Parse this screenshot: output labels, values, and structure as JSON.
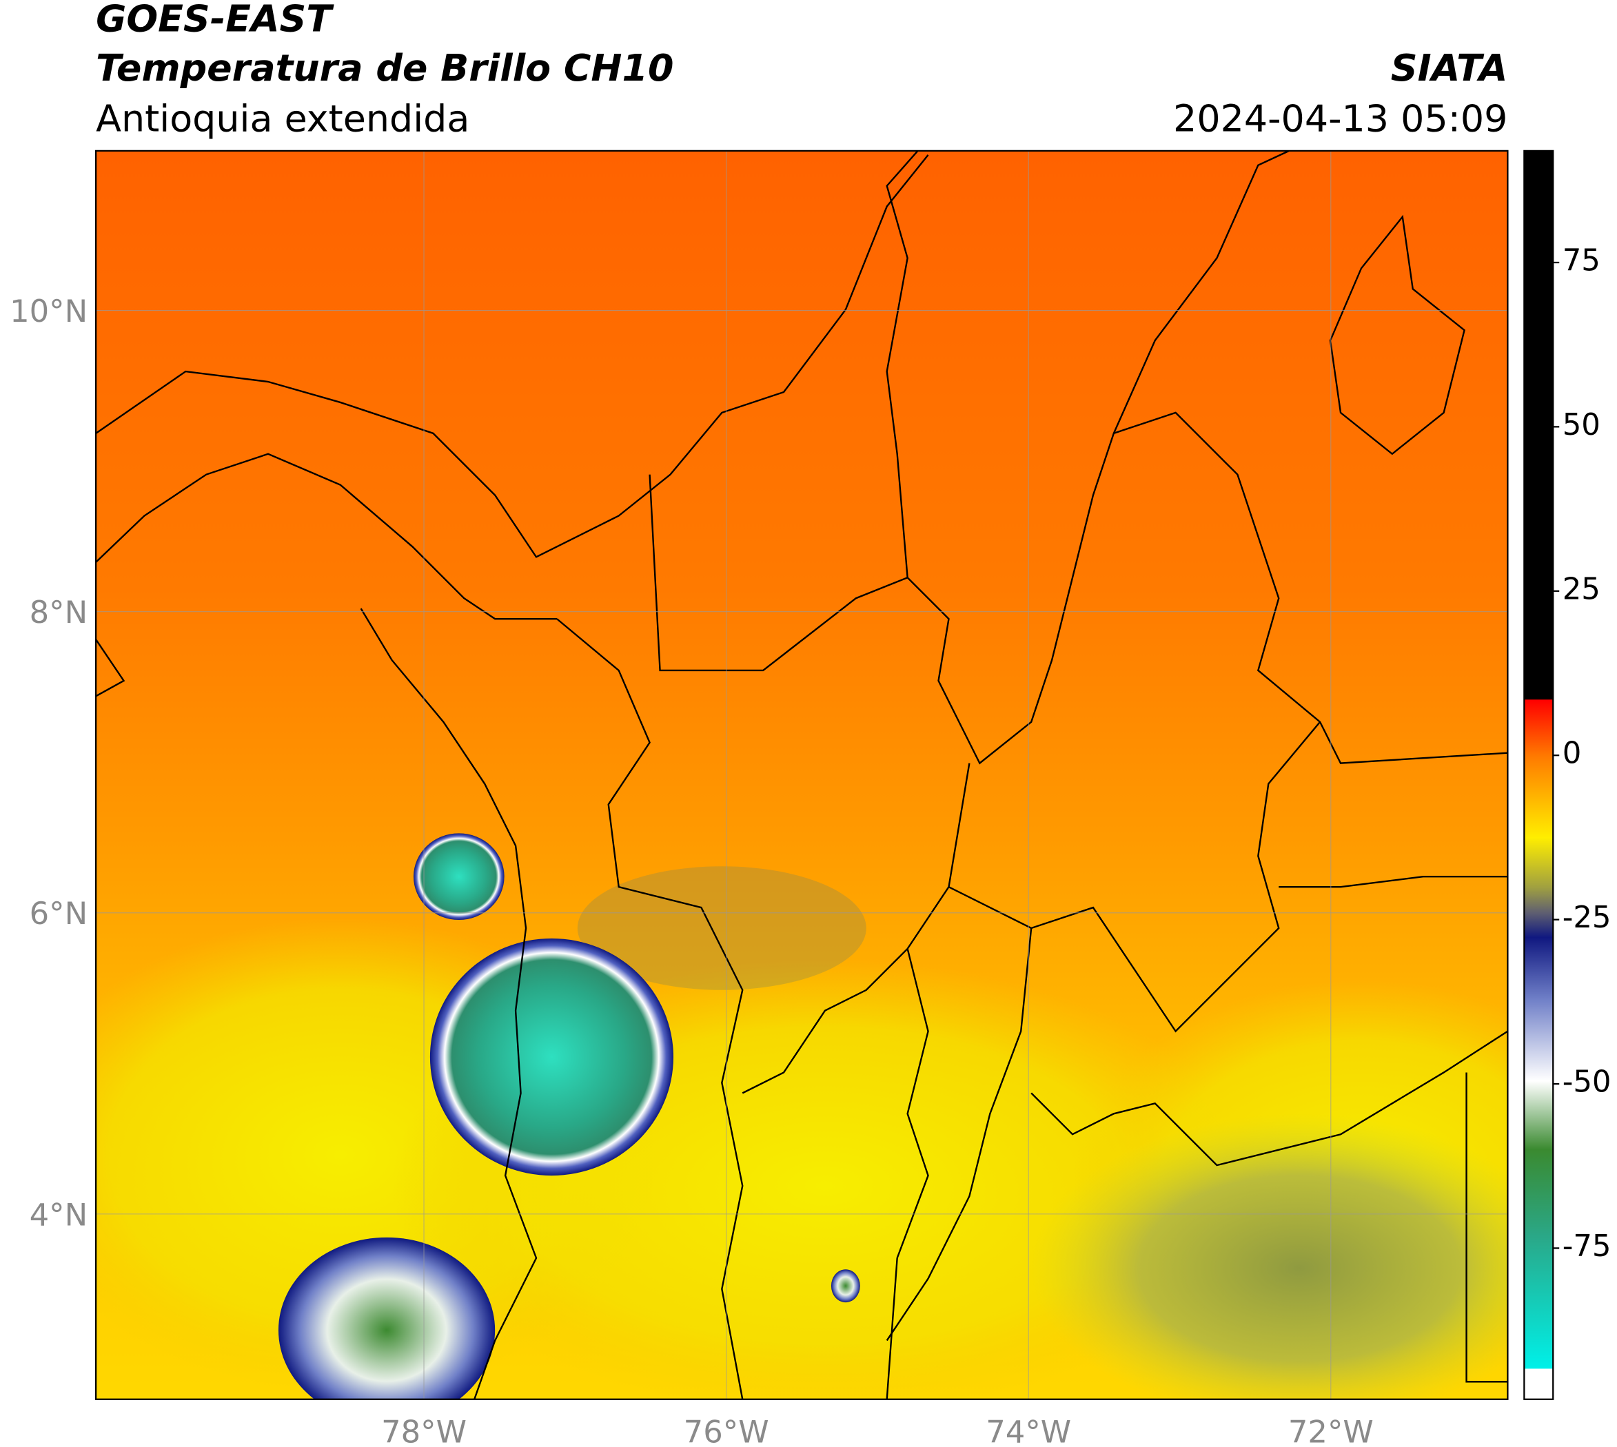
{
  "header": {
    "satellite": "GOES-EAST",
    "product": "Temperatura de Brillo CH10",
    "region": "Antioquia extendida",
    "agency": "SIATA",
    "datetime": "2024-04-13 05:09"
  },
  "chart_data": {
    "type": "map",
    "xlim": [
      -80.17,
      -70.83
    ],
    "ylim": [
      2.77,
      11.06
    ],
    "grid": true,
    "xticks": [
      {
        "value": -78,
        "label": "78°W"
      },
      {
        "value": -76,
        "label": "76°W"
      },
      {
        "value": -74,
        "label": "74°W"
      },
      {
        "value": -72,
        "label": "72°W"
      }
    ],
    "yticks": [
      {
        "value": 10,
        "label": "10°N"
      },
      {
        "value": 8,
        "label": "8°N"
      },
      {
        "value": 6,
        "label": "6°N"
      },
      {
        "value": 4,
        "label": "4°N"
      }
    ],
    "colorbar": {
      "lim": [
        -98,
        92
      ],
      "ticks": [
        75,
        50,
        25,
        0,
        -25,
        -50,
        -75
      ]
    }
  }
}
